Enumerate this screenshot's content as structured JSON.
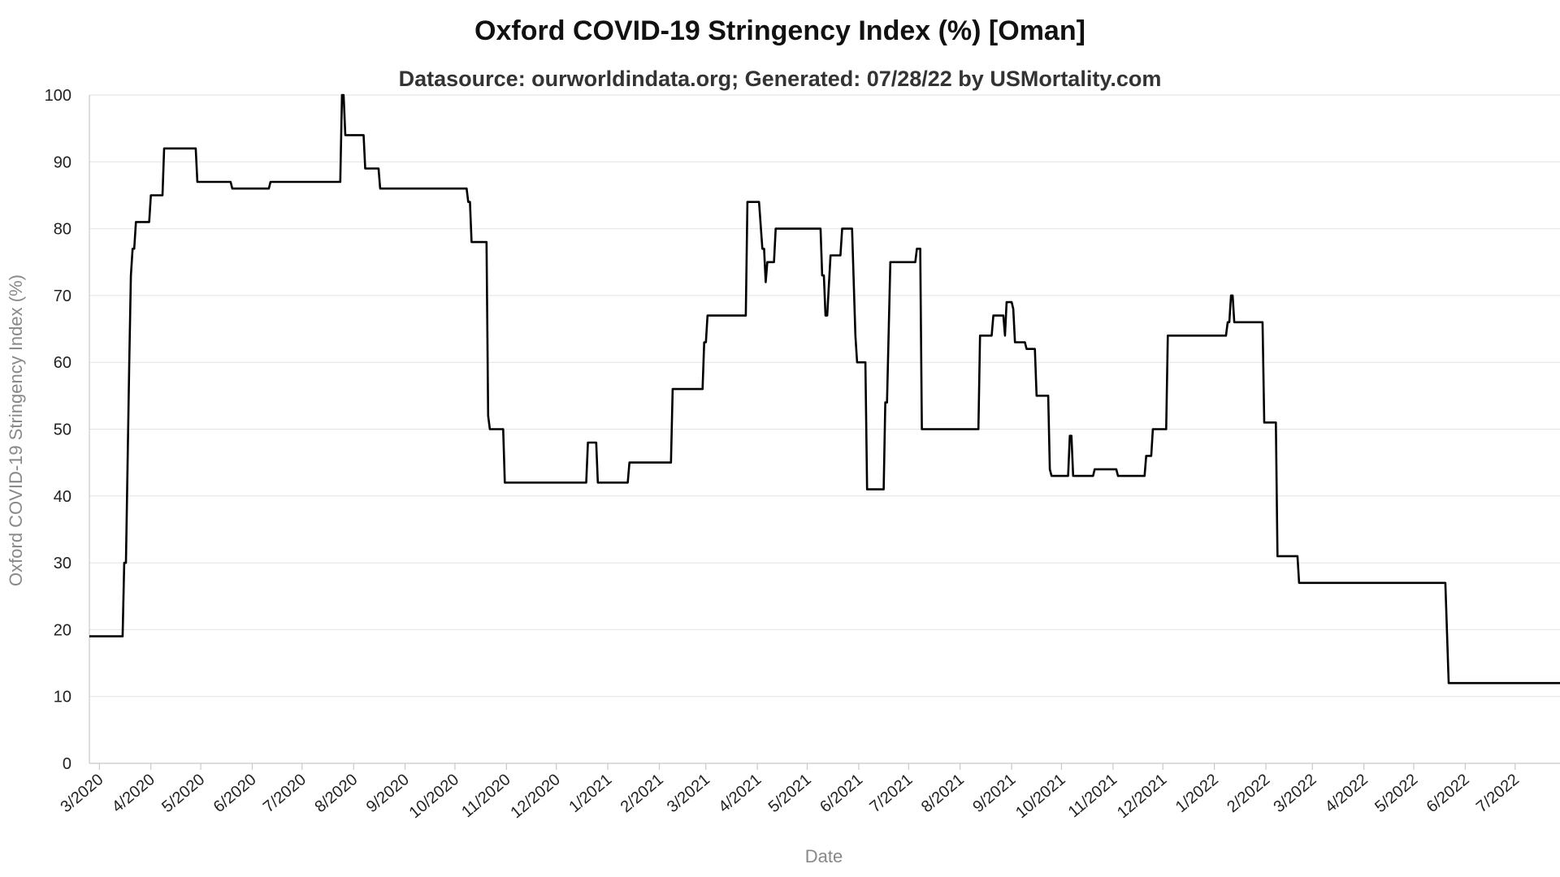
{
  "chart_data": {
    "type": "line",
    "title": "Oxford COVID-19 Stringency Index (%) [Oman]",
    "subtitle": "Datasource: ourworldindata.org; Generated: 07/28/22 by USMortality.com",
    "xlabel": "Date",
    "ylabel": "Oxford COVID-19 Stringency Index (%)",
    "ylim": [
      0,
      100
    ],
    "yticks": [
      0,
      10,
      20,
      30,
      40,
      50,
      60,
      70,
      80,
      90,
      100
    ],
    "xlim": [
      "2020-02-24",
      "2022-07-28"
    ],
    "xticks": [
      {
        "date": "2020-03-01",
        "label": "3/2020"
      },
      {
        "date": "2020-04-01",
        "label": "4/2020"
      },
      {
        "date": "2020-05-01",
        "label": "5/2020"
      },
      {
        "date": "2020-06-01",
        "label": "6/2020"
      },
      {
        "date": "2020-07-01",
        "label": "7/2020"
      },
      {
        "date": "2020-08-01",
        "label": "8/2020"
      },
      {
        "date": "2020-09-01",
        "label": "9/2020"
      },
      {
        "date": "2020-10-01",
        "label": "10/2020"
      },
      {
        "date": "2020-11-01",
        "label": "11/2020"
      },
      {
        "date": "2020-12-01",
        "label": "12/2020"
      },
      {
        "date": "2021-01-01",
        "label": "1/2021"
      },
      {
        "date": "2021-02-01",
        "label": "2/2021"
      },
      {
        "date": "2021-03-01",
        "label": "3/2021"
      },
      {
        "date": "2021-04-01",
        "label": "4/2021"
      },
      {
        "date": "2021-05-01",
        "label": "5/2021"
      },
      {
        "date": "2021-06-01",
        "label": "6/2021"
      },
      {
        "date": "2021-07-01",
        "label": "7/2021"
      },
      {
        "date": "2021-08-01",
        "label": "8/2021"
      },
      {
        "date": "2021-09-01",
        "label": "9/2021"
      },
      {
        "date": "2021-10-01",
        "label": "10/2021"
      },
      {
        "date": "2021-11-01",
        "label": "11/2021"
      },
      {
        "date": "2021-12-01",
        "label": "12/2021"
      },
      {
        "date": "2022-01-01",
        "label": "1/2022"
      },
      {
        "date": "2022-02-01",
        "label": "2/2022"
      },
      {
        "date": "2022-03-01",
        "label": "3/2022"
      },
      {
        "date": "2022-04-01",
        "label": "4/2022"
      },
      {
        "date": "2022-05-01",
        "label": "5/2022"
      },
      {
        "date": "2022-06-01",
        "label": "6/2022"
      },
      {
        "date": "2022-07-01",
        "label": "7/2022"
      }
    ],
    "grid": true,
    "series": [
      {
        "color": "#000000",
        "points": [
          [
            "2020-02-24",
            19
          ],
          [
            "2020-03-15",
            19
          ],
          [
            "2020-03-16",
            30
          ],
          [
            "2020-03-17",
            30
          ],
          [
            "2020-03-19",
            60
          ],
          [
            "2020-03-20",
            73
          ],
          [
            "2020-03-21",
            77
          ],
          [
            "2020-03-22",
            77
          ],
          [
            "2020-03-23",
            81
          ],
          [
            "2020-03-31",
            81
          ],
          [
            "2020-04-01",
            85
          ],
          [
            "2020-04-08",
            85
          ],
          [
            "2020-04-09",
            92
          ],
          [
            "2020-04-28",
            92
          ],
          [
            "2020-04-29",
            87
          ],
          [
            "2020-05-19",
            87
          ],
          [
            "2020-05-20",
            86
          ],
          [
            "2020-06-11",
            86
          ],
          [
            "2020-06-12",
            87
          ],
          [
            "2020-07-24",
            87
          ],
          [
            "2020-07-25",
            100
          ],
          [
            "2020-07-26",
            100
          ],
          [
            "2020-07-27",
            94
          ],
          [
            "2020-08-07",
            94
          ],
          [
            "2020-08-08",
            89
          ],
          [
            "2020-08-16",
            89
          ],
          [
            "2020-08-17",
            86
          ],
          [
            "2020-10-08",
            86
          ],
          [
            "2020-10-09",
            84
          ],
          [
            "2020-10-10",
            84
          ],
          [
            "2020-10-11",
            78
          ],
          [
            "2020-10-20",
            78
          ],
          [
            "2020-10-21",
            52
          ],
          [
            "2020-10-22",
            50
          ],
          [
            "2020-10-30",
            50
          ],
          [
            "2020-10-31",
            42
          ],
          [
            "2020-12-19",
            42
          ],
          [
            "2020-12-20",
            48
          ],
          [
            "2020-12-25",
            48
          ],
          [
            "2020-12-26",
            42
          ],
          [
            "2021-01-13",
            42
          ],
          [
            "2021-01-14",
            45
          ],
          [
            "2021-02-08",
            45
          ],
          [
            "2021-02-09",
            56
          ],
          [
            "2021-02-27",
            56
          ],
          [
            "2021-02-28",
            63
          ],
          [
            "2021-03-01",
            63
          ],
          [
            "2021-03-02",
            67
          ],
          [
            "2021-03-25",
            67
          ],
          [
            "2021-03-26",
            84
          ],
          [
            "2021-04-02",
            84
          ],
          [
            "2021-04-04",
            77
          ],
          [
            "2021-04-05",
            77
          ],
          [
            "2021-04-06",
            72
          ],
          [
            "2021-04-07",
            75
          ],
          [
            "2021-04-11",
            75
          ],
          [
            "2021-04-12",
            80
          ],
          [
            "2021-05-09",
            80
          ],
          [
            "2021-05-10",
            73
          ],
          [
            "2021-05-11",
            73
          ],
          [
            "2021-05-12",
            67
          ],
          [
            "2021-05-13",
            67
          ],
          [
            "2021-05-15",
            76
          ],
          [
            "2021-05-21",
            76
          ],
          [
            "2021-05-22",
            80
          ],
          [
            "2021-05-28",
            80
          ],
          [
            "2021-05-30",
            64
          ],
          [
            "2021-05-31",
            60
          ],
          [
            "2021-06-05",
            60
          ],
          [
            "2021-06-06",
            41
          ],
          [
            "2021-06-16",
            41
          ],
          [
            "2021-06-17",
            54
          ],
          [
            "2021-06-18",
            54
          ],
          [
            "2021-06-20",
            75
          ],
          [
            "2021-07-05",
            75
          ],
          [
            "2021-07-06",
            77
          ],
          [
            "2021-07-08",
            77
          ],
          [
            "2021-07-09",
            50
          ],
          [
            "2021-08-12",
            50
          ],
          [
            "2021-08-13",
            64
          ],
          [
            "2021-08-20",
            64
          ],
          [
            "2021-08-21",
            67
          ],
          [
            "2021-08-27",
            67
          ],
          [
            "2021-08-28",
            64
          ],
          [
            "2021-08-29",
            69
          ],
          [
            "2021-09-01",
            69
          ],
          [
            "2021-09-02",
            68
          ],
          [
            "2021-09-03",
            63
          ],
          [
            "2021-09-09",
            63
          ],
          [
            "2021-09-10",
            62
          ],
          [
            "2021-09-15",
            62
          ],
          [
            "2021-09-16",
            55
          ],
          [
            "2021-09-23",
            55
          ],
          [
            "2021-09-24",
            44
          ],
          [
            "2021-09-25",
            43
          ],
          [
            "2021-10-05",
            43
          ],
          [
            "2021-10-06",
            49
          ],
          [
            "2021-10-07",
            49
          ],
          [
            "2021-10-08",
            43
          ],
          [
            "2021-10-20",
            43
          ],
          [
            "2021-10-21",
            44
          ],
          [
            "2021-11-03",
            44
          ],
          [
            "2021-11-04",
            43
          ],
          [
            "2021-11-20",
            43
          ],
          [
            "2021-11-21",
            46
          ],
          [
            "2021-11-24",
            46
          ],
          [
            "2021-11-25",
            50
          ],
          [
            "2021-12-03",
            50
          ],
          [
            "2021-12-04",
            64
          ],
          [
            "2022-01-08",
            64
          ],
          [
            "2022-01-09",
            66
          ],
          [
            "2022-01-10",
            66
          ],
          [
            "2022-01-11",
            70
          ],
          [
            "2022-01-12",
            70
          ],
          [
            "2022-01-13",
            66
          ],
          [
            "2022-01-30",
            66
          ],
          [
            "2022-01-31",
            51
          ],
          [
            "2022-02-07",
            51
          ],
          [
            "2022-02-08",
            31
          ],
          [
            "2022-02-20",
            31
          ],
          [
            "2022-02-21",
            27
          ],
          [
            "2022-05-20",
            27
          ],
          [
            "2022-05-22",
            12
          ],
          [
            "2022-07-28",
            12
          ]
        ]
      }
    ]
  }
}
